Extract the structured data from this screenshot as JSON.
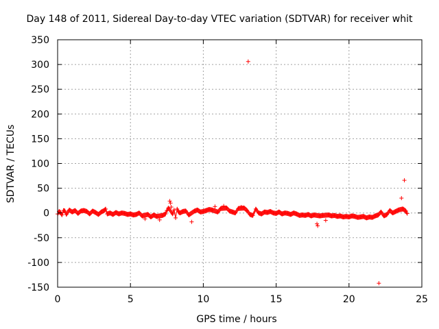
{
  "chart_data": {
    "type": "scatter",
    "title": "Day 148 of 2011, Sidereal Day-to-day VTEC variation (SDTVAR) for receiver whit",
    "xlabel": "GPS time / hours",
    "ylabel": "SDTVAR / TECUs",
    "xlim": [
      0,
      25
    ],
    "ylim": [
      -150,
      350
    ],
    "xticks": [
      0,
      5,
      10,
      15,
      20,
      25
    ],
    "yticks": [
      -150,
      -100,
      -50,
      0,
      50,
      100,
      150,
      200,
      250,
      300,
      350
    ],
    "grid": true,
    "marker": "+",
    "series_color": "#ff0000",
    "series": [
      {
        "name": "SDTVAR",
        "points": [
          [
            0.0,
            -2
          ],
          [
            0.1,
            3
          ],
          [
            0.2,
            1
          ],
          [
            0.3,
            -4
          ],
          [
            0.4,
            5
          ],
          [
            0.5,
            4
          ],
          [
            0.6,
            -3
          ],
          [
            0.8,
            6
          ],
          [
            1.0,
            2
          ],
          [
            1.2,
            5
          ],
          [
            1.4,
            -1
          ],
          [
            1.6,
            4
          ],
          [
            1.8,
            5
          ],
          [
            2.0,
            3
          ],
          [
            2.2,
            -2
          ],
          [
            2.4,
            4
          ],
          [
            2.6,
            1
          ],
          [
            2.8,
            -3
          ],
          [
            3.0,
            2
          ],
          [
            3.2,
            5
          ],
          [
            3.3,
            8
          ],
          [
            3.4,
            -2
          ],
          [
            3.6,
            0
          ],
          [
            3.8,
            -3
          ],
          [
            4.0,
            1
          ],
          [
            4.2,
            -2
          ],
          [
            4.4,
            0
          ],
          [
            4.6,
            -1
          ],
          [
            4.8,
            -3
          ],
          [
            5.0,
            -2
          ],
          [
            5.2,
            -4
          ],
          [
            5.4,
            -3
          ],
          [
            5.6,
            0
          ],
          [
            5.8,
            -6
          ],
          [
            6.0,
            -12
          ],
          [
            6.2,
            -3
          ],
          [
            6.4,
            -8
          ],
          [
            6.6,
            -4
          ],
          [
            6.8,
            -7
          ],
          [
            7.0,
            -14
          ],
          [
            7.2,
            -5
          ],
          [
            7.4,
            -2
          ],
          [
            7.5,
            5
          ],
          [
            7.6,
            10
          ],
          [
            7.7,
            24
          ],
          [
            7.75,
            20
          ],
          [
            7.8,
            12
          ],
          [
            7.9,
            -2
          ],
          [
            8.0,
            6
          ],
          [
            8.1,
            -10
          ],
          [
            8.2,
            8
          ],
          [
            8.3,
            2
          ],
          [
            8.4,
            0
          ],
          [
            8.6,
            3
          ],
          [
            8.8,
            4
          ],
          [
            9.0,
            -4
          ],
          [
            9.2,
            -18
          ],
          [
            9.4,
            4
          ],
          [
            9.6,
            6
          ],
          [
            9.8,
            2
          ],
          [
            10.0,
            3
          ],
          [
            10.2,
            5
          ],
          [
            10.4,
            7
          ],
          [
            10.6,
            6
          ],
          [
            10.8,
            13
          ],
          [
            11.0,
            2
          ],
          [
            11.2,
            9
          ],
          [
            11.4,
            14
          ],
          [
            11.6,
            10
          ],
          [
            11.8,
            4
          ],
          [
            12.0,
            2
          ],
          [
            12.2,
            0
          ],
          [
            12.4,
            9
          ],
          [
            12.6,
            12
          ],
          [
            12.8,
            10
          ],
          [
            13.0,
            5
          ],
          [
            13.08,
            306
          ],
          [
            13.2,
            -3
          ],
          [
            13.4,
            -5
          ],
          [
            13.6,
            8
          ],
          [
            13.8,
            0
          ],
          [
            14.0,
            -2
          ],
          [
            14.2,
            2
          ],
          [
            14.4,
            1
          ],
          [
            14.6,
            3
          ],
          [
            14.8,
            0
          ],
          [
            15.0,
            -1
          ],
          [
            15.2,
            2
          ],
          [
            15.4,
            -2
          ],
          [
            15.6,
            0
          ],
          [
            15.8,
            -1
          ],
          [
            16.0,
            -3
          ],
          [
            16.2,
            0
          ],
          [
            16.4,
            -2
          ],
          [
            16.6,
            -5
          ],
          [
            16.8,
            -4
          ],
          [
            17.0,
            -5
          ],
          [
            17.2,
            -3
          ],
          [
            17.4,
            -6
          ],
          [
            17.6,
            -4
          ],
          [
            17.8,
            -22
          ],
          [
            17.85,
            -26
          ],
          [
            18.0,
            -6
          ],
          [
            18.2,
            -5
          ],
          [
            18.4,
            -15
          ],
          [
            18.6,
            -4
          ],
          [
            18.8,
            -6
          ],
          [
            19.0,
            -5
          ],
          [
            19.2,
            -7
          ],
          [
            19.4,
            -6
          ],
          [
            19.6,
            -8
          ],
          [
            19.8,
            -7
          ],
          [
            20.0,
            -8
          ],
          [
            20.2,
            -6
          ],
          [
            20.4,
            -7
          ],
          [
            20.6,
            -9
          ],
          [
            20.8,
            -8
          ],
          [
            21.0,
            -7
          ],
          [
            21.2,
            -10
          ],
          [
            21.4,
            -8
          ],
          [
            21.6,
            -9
          ],
          [
            21.8,
            -6
          ],
          [
            22.0,
            -4
          ],
          [
            22.05,
            -142
          ],
          [
            22.2,
            2
          ],
          [
            22.4,
            -6
          ],
          [
            22.6,
            -3
          ],
          [
            22.8,
            5
          ],
          [
            23.0,
            0
          ],
          [
            23.2,
            3
          ],
          [
            23.4,
            6
          ],
          [
            23.6,
            30
          ],
          [
            23.7,
            8
          ],
          [
            23.8,
            66
          ],
          [
            23.9,
            4
          ],
          [
            24.0,
            -1
          ]
        ]
      }
    ]
  }
}
